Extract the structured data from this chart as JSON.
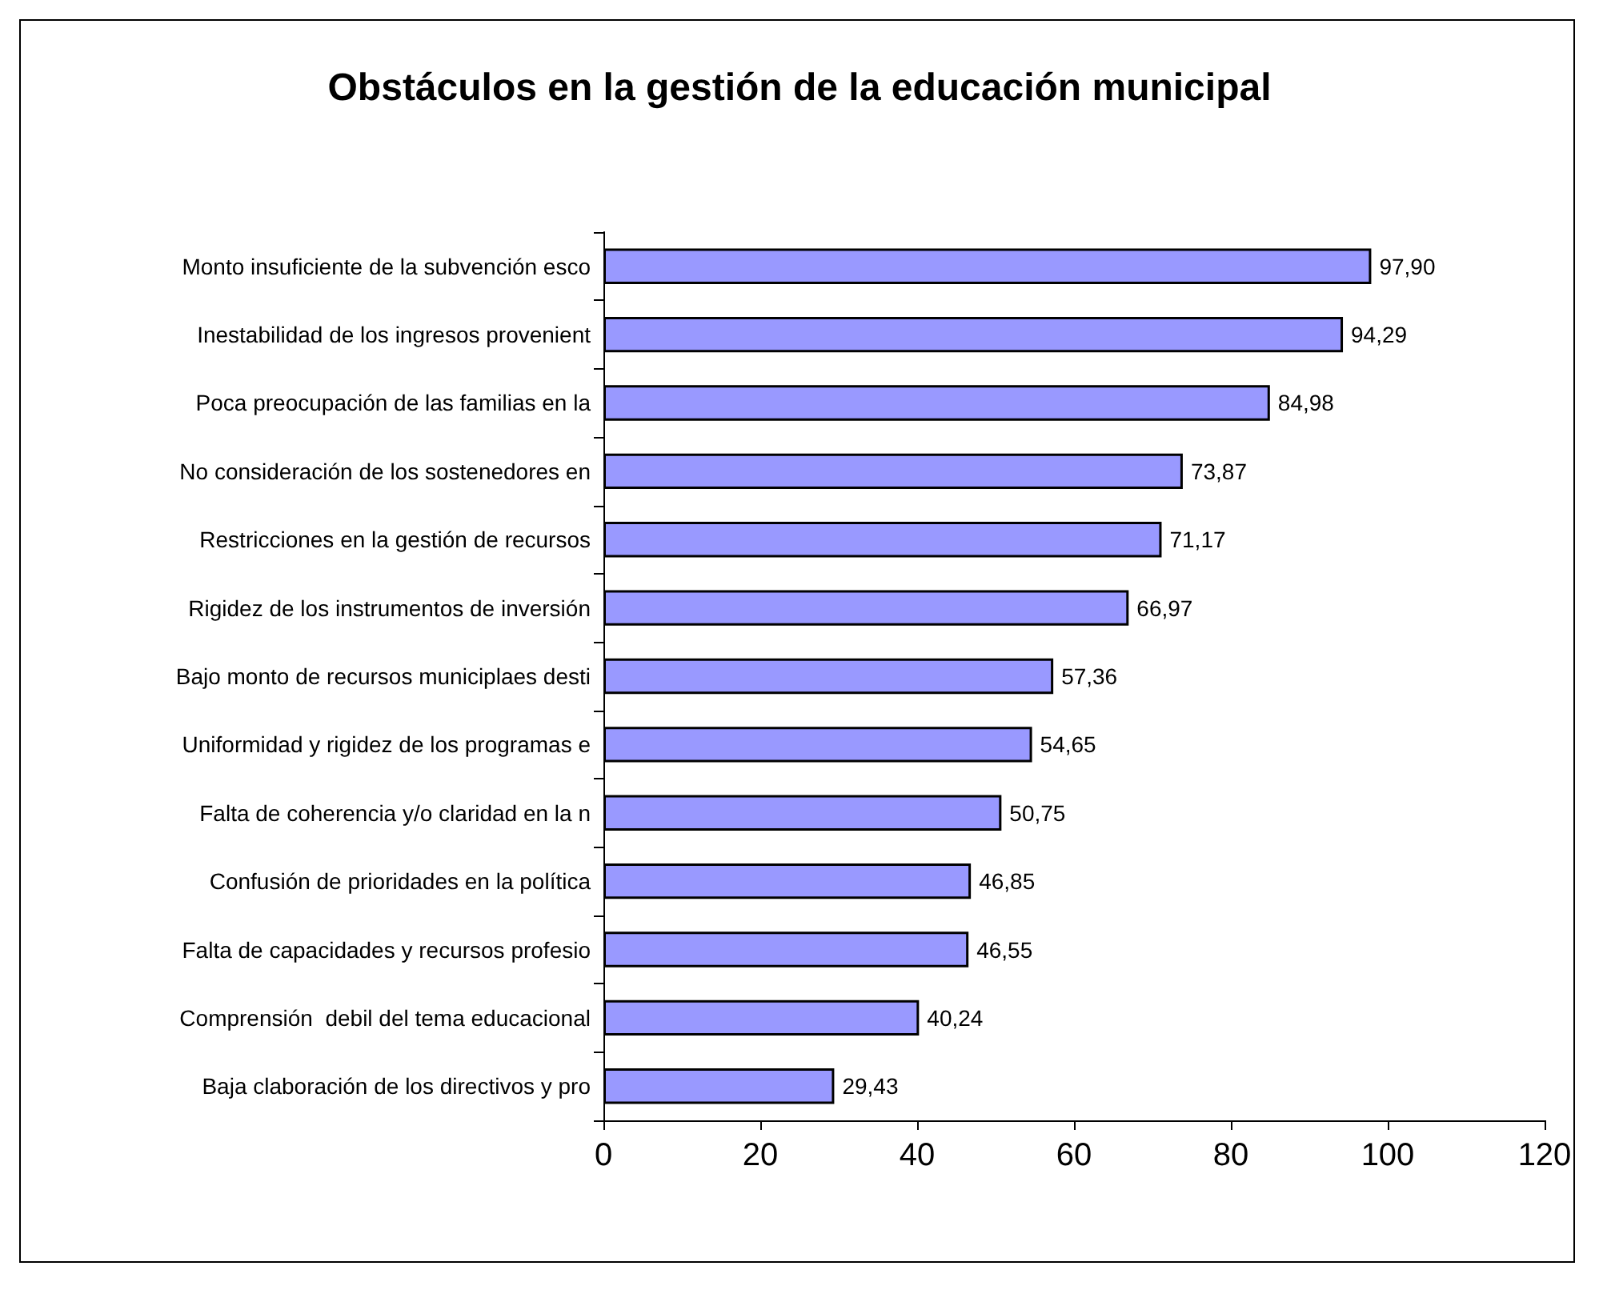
{
  "chart_data": {
    "type": "bar",
    "orientation": "horizontal",
    "title": "Obstáculos en la gestión de la educación municipal",
    "categories": [
      "Monto insuficiente de la subvención esco",
      "Inestabilidad de los ingresos provenient",
      "Poca preocupación de las familias en la",
      "No consideración de los sostenedores en",
      "Restricciones en la gestión de recursos",
      "Rigidez de los instrumentos de inversión",
      "Bajo monto de recursos municiplaes desti",
      "Uniformidad y rigidez de los programas e",
      "Falta de coherencia y/o claridad en la n",
      "Confusión de prioridades en la política",
      "Falta de capacidades y recursos profesio",
      "Comprensión  debil del tema educacional",
      "Baja claboración de los directivos y pro"
    ],
    "values": [
      97.9,
      94.29,
      84.98,
      73.87,
      71.17,
      66.97,
      57.36,
      54.65,
      50.75,
      46.85,
      46.55,
      40.24,
      29.43
    ],
    "value_labels": [
      "97,90",
      "94,29",
      "84,98",
      "73,87",
      "71,17",
      "66,97",
      "57,36",
      "54,65",
      "50,75",
      "46,85",
      "46,55",
      "40,24",
      "29,43"
    ],
    "color": "#9999ff",
    "xlim": [
      0,
      120
    ],
    "xticks": [
      0,
      20,
      40,
      60,
      80,
      100,
      120
    ],
    "grid": false
  }
}
